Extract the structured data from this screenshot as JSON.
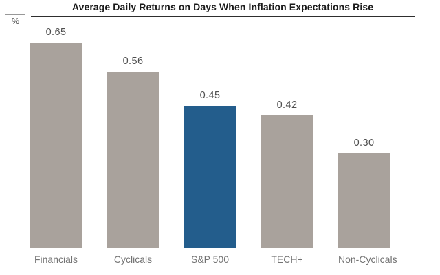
{
  "title": "Average Daily Returns on Days When Inflation Expectations Rise",
  "y_unit_label": "%",
  "chart_data": {
    "type": "bar",
    "title": "Average Daily Returns on Days When Inflation Expectations Rise",
    "xlabel": "",
    "ylabel": "%",
    "categories": [
      "Financials",
      "Cyclicals",
      "S&P 500",
      "TECH+",
      "Non-Cyclicals"
    ],
    "values": [
      0.65,
      0.56,
      0.45,
      0.42,
      0.3
    ],
    "value_labels": [
      "0.65",
      "0.56",
      "0.45",
      "0.42",
      "0.30"
    ],
    "highlight_index": 2,
    "ylim": [
      0,
      0.7
    ],
    "grid": false,
    "legend": "none",
    "colors": {
      "bar_default": "#a9a29c",
      "bar_highlight": "#235d8c",
      "axis_line": "#c9c9c9",
      "value_label": "#4f4f4f",
      "category_label": "#737373",
      "title_text": "#1a1a1a",
      "title_underline": "#2e2e2e",
      "unit_tick": "#989898"
    }
  }
}
